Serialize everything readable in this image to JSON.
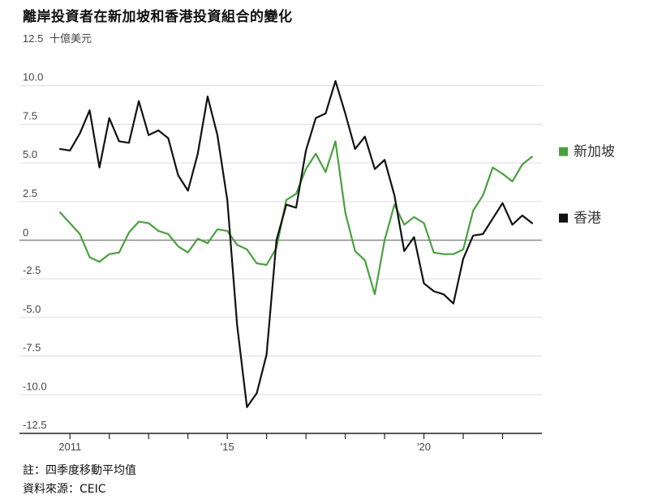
{
  "title": "離岸投資者在新加坡和香港投資組合的變化",
  "footnotes": {
    "note": "註：四季度移動平均值",
    "source": "資料來源：CEIC"
  },
  "colors": {
    "singapore": "#4aa03f",
    "hongkong": "#111111",
    "grid": "#dddddd",
    "zero_line": "#888888"
  },
  "chart_data": {
    "type": "line",
    "title": "離岸投資者在新加坡和香港投資組合的變化",
    "ylabel": "十億美元",
    "ylim": [
      -12.5,
      12.5
    ],
    "yticks": [
      {
        "value": 12.5,
        "label": "12.5"
      },
      {
        "value": 10,
        "label": "10.0"
      },
      {
        "value": 7.5,
        "label": "7.5"
      },
      {
        "value": 5,
        "label": "5.0"
      },
      {
        "value": 2.5,
        "label": "2.5"
      },
      {
        "value": 0,
        "label": "0"
      },
      {
        "value": -2.5,
        "label": "-2.5"
      },
      {
        "value": -5,
        "label": "-5.0"
      },
      {
        "value": -7.5,
        "label": "-7.5"
      },
      {
        "value": -10,
        "label": "-10.0"
      },
      {
        "value": -12.5,
        "label": "-12.5"
      }
    ],
    "xlim": [
      2010.5,
      2023.0
    ],
    "xtick_labels": [
      {
        "value": 2011,
        "label": "2011"
      },
      {
        "value": 2015,
        "label": "'15"
      },
      {
        "value": 2020,
        "label": "'20"
      }
    ],
    "xtick_marks": [
      2011,
      2012,
      2013,
      2014,
      2015,
      2016,
      2017,
      2018,
      2019,
      2020,
      2021,
      2022
    ],
    "grid": true,
    "legend_position": "right",
    "series": [
      {
        "name": "新加坡",
        "color": "#4aa03f",
        "points": [
          [
            2010.75,
            1.8
          ],
          [
            2011.0,
            1.1
          ],
          [
            2011.25,
            0.4
          ],
          [
            2011.5,
            -1.1
          ],
          [
            2011.75,
            -1.4
          ],
          [
            2012.0,
            -0.9
          ],
          [
            2012.25,
            -0.8
          ],
          [
            2012.5,
            0.5
          ],
          [
            2012.75,
            1.2
          ],
          [
            2013.0,
            1.1
          ],
          [
            2013.25,
            0.6
          ],
          [
            2013.5,
            0.4
          ],
          [
            2013.75,
            -0.4
          ],
          [
            2014.0,
            -0.8
          ],
          [
            2014.25,
            0.1
          ],
          [
            2014.5,
            -0.2
          ],
          [
            2014.75,
            0.7
          ],
          [
            2015.0,
            0.6
          ],
          [
            2015.25,
            -0.3
          ],
          [
            2015.5,
            -0.6
          ],
          [
            2015.75,
            -1.5
          ],
          [
            2016.0,
            -1.6
          ],
          [
            2016.25,
            -0.5
          ],
          [
            2016.5,
            2.6
          ],
          [
            2016.75,
            3.0
          ],
          [
            2017.0,
            4.6
          ],
          [
            2017.25,
            5.6
          ],
          [
            2017.5,
            4.4
          ],
          [
            2017.75,
            6.4
          ],
          [
            2018.0,
            1.8
          ],
          [
            2018.25,
            -0.7
          ],
          [
            2018.5,
            -1.3
          ],
          [
            2018.75,
            -3.5
          ],
          [
            2019.0,
            0.0
          ],
          [
            2019.25,
            2.3
          ],
          [
            2019.5,
            1.0
          ],
          [
            2019.75,
            1.5
          ],
          [
            2020.0,
            1.1
          ],
          [
            2020.25,
            -0.8
          ],
          [
            2020.5,
            -0.9
          ],
          [
            2020.75,
            -0.9
          ],
          [
            2021.0,
            -0.6
          ],
          [
            2021.25,
            1.9
          ],
          [
            2021.5,
            2.9
          ],
          [
            2021.75,
            4.7
          ],
          [
            2022.0,
            4.3
          ],
          [
            2022.25,
            3.8
          ],
          [
            2022.5,
            4.9
          ],
          [
            2022.75,
            5.4
          ]
        ]
      },
      {
        "name": "香港",
        "color": "#111111",
        "points": [
          [
            2010.75,
            5.9
          ],
          [
            2011.0,
            5.8
          ],
          [
            2011.25,
            6.9
          ],
          [
            2011.5,
            8.4
          ],
          [
            2011.75,
            4.7
          ],
          [
            2012.0,
            7.9
          ],
          [
            2012.25,
            6.4
          ],
          [
            2012.5,
            6.3
          ],
          [
            2012.75,
            9.0
          ],
          [
            2013.0,
            6.8
          ],
          [
            2013.25,
            7.1
          ],
          [
            2013.5,
            6.6
          ],
          [
            2013.75,
            4.2
          ],
          [
            2014.0,
            3.2
          ],
          [
            2014.25,
            5.6
          ],
          [
            2014.5,
            9.3
          ],
          [
            2014.75,
            6.8
          ],
          [
            2015.0,
            2.6
          ],
          [
            2015.25,
            -5.5
          ],
          [
            2015.5,
            -10.8
          ],
          [
            2015.75,
            -9.9
          ],
          [
            2016.0,
            -7.4
          ],
          [
            2016.25,
            0.0
          ],
          [
            2016.5,
            2.3
          ],
          [
            2016.75,
            2.1
          ],
          [
            2017.0,
            5.8
          ],
          [
            2017.25,
            7.9
          ],
          [
            2017.5,
            8.2
          ],
          [
            2017.75,
            10.3
          ],
          [
            2018.0,
            8.2
          ],
          [
            2018.25,
            5.9
          ],
          [
            2018.5,
            6.7
          ],
          [
            2018.75,
            4.6
          ],
          [
            2019.0,
            5.2
          ],
          [
            2019.25,
            2.9
          ],
          [
            2019.5,
            -0.7
          ],
          [
            2019.75,
            0.2
          ],
          [
            2020.0,
            -2.8
          ],
          [
            2020.25,
            -3.3
          ],
          [
            2020.5,
            -3.5
          ],
          [
            2020.75,
            -4.1
          ],
          [
            2021.0,
            -1.2
          ],
          [
            2021.25,
            0.3
          ],
          [
            2021.5,
            0.4
          ],
          [
            2021.75,
            1.4
          ],
          [
            2022.0,
            2.4
          ],
          [
            2022.25,
            1.0
          ],
          [
            2022.5,
            1.6
          ],
          [
            2022.75,
            1.1
          ]
        ]
      }
    ]
  }
}
